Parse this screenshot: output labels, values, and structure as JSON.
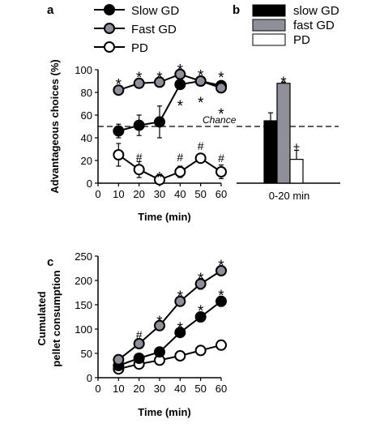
{
  "panel_labels": {
    "a": "a",
    "b": "b",
    "c": "c"
  },
  "chart_a_legend": [
    "Slow GD",
    "Fast GD",
    "PD"
  ],
  "chart_b_legend": [
    "slow GD",
    "fast GD",
    "PD"
  ],
  "chance_label": "Chance",
  "colors": {
    "slow": "#000000",
    "fast": "#8f8f9a",
    "pd": "#ffffff",
    "line": "#000000"
  },
  "chart_data": [
    {
      "id": "a",
      "type": "line",
      "xlabel": "Time (min)",
      "ylabel": "Advantageous choices (%)",
      "x": [
        10,
        20,
        30,
        40,
        50,
        60
      ],
      "xlim": [
        0,
        60
      ],
      "ylim": [
        0,
        100
      ],
      "xticks": [
        0,
        10,
        20,
        30,
        40,
        50,
        60
      ],
      "yticks": [
        0,
        20,
        40,
        60,
        80,
        100
      ],
      "chance_level": 50,
      "series": [
        {
          "name": "Slow GD",
          "values": [
            46,
            51,
            54,
            87,
            90,
            86
          ],
          "errors": [
            6,
            9,
            14,
            2,
            2,
            3
          ]
        },
        {
          "name": "Fast GD",
          "values": [
            82,
            88,
            89,
            96,
            90,
            84
          ],
          "errors": [
            2,
            2,
            2,
            1,
            2,
            3
          ]
        },
        {
          "name": "PD",
          "values": [
            25,
            12,
            3,
            10,
            22,
            10
          ],
          "errors": [
            10,
            7,
            4,
            5,
            3,
            6
          ]
        }
      ],
      "annotations": [
        {
          "x": 10,
          "y": 91,
          "text": "*"
        },
        {
          "x": 20,
          "y": 97,
          "text": "*"
        },
        {
          "x": 30,
          "y": 97,
          "text": "*"
        },
        {
          "x": 40,
          "y": 104,
          "text": "*"
        },
        {
          "x": 50,
          "y": 99,
          "text": "*"
        },
        {
          "x": 60,
          "y": 97,
          "text": "*"
        },
        {
          "x": 40,
          "y": 72,
          "text": "*"
        },
        {
          "x": 50,
          "y": 75,
          "text": "*"
        },
        {
          "x": 60,
          "y": 65,
          "text": "*"
        },
        {
          "x": 20,
          "y": 23,
          "text": "#"
        },
        {
          "x": 30,
          "y": 9,
          "text": "*"
        },
        {
          "x": 40,
          "y": 23,
          "text": "#"
        },
        {
          "x": 50,
          "y": 33,
          "text": "#"
        },
        {
          "x": 60,
          "y": 22,
          "text": "#"
        }
      ]
    },
    {
      "id": "b",
      "type": "bar",
      "categories": [
        "0-20 min"
      ],
      "ylim": [
        0,
        100
      ],
      "chance_level": 50,
      "series": [
        {
          "name": "slow GD",
          "values": [
            55
          ],
          "errors": [
            7
          ]
        },
        {
          "name": "fast GD",
          "values": [
            88
          ],
          "errors": [
            1
          ]
        },
        {
          "name": "PD",
          "values": [
            21
          ],
          "errors": [
            8
          ]
        }
      ],
      "annotations": [
        {
          "series": "fast GD",
          "y": 93,
          "text": "*"
        },
        {
          "series": "PD",
          "y": 33,
          "text": "+"
        }
      ]
    },
    {
      "id": "c",
      "type": "line",
      "xlabel": "Time (min)",
      "ylabel": [
        "Cumulated",
        "pellet consumption"
      ],
      "x": [
        10,
        20,
        30,
        40,
        50,
        60
      ],
      "xlim": [
        0,
        60
      ],
      "ylim": [
        0,
        250
      ],
      "xticks": [
        0,
        10,
        20,
        30,
        40,
        50,
        60
      ],
      "yticks": [
        0,
        50,
        100,
        150,
        200,
        250
      ],
      "series": [
        {
          "name": "Slow GD",
          "values": [
            25,
            40,
            53,
            93,
            125,
            157
          ],
          "errors": [
            4,
            5,
            6,
            8,
            10,
            10
          ]
        },
        {
          "name": "Fast GD",
          "values": [
            37,
            70,
            107,
            157,
            193,
            220
          ],
          "errors": [
            4,
            5,
            5,
            9,
            11,
            8
          ]
        },
        {
          "name": "PD",
          "values": [
            18,
            28,
            36,
            45,
            56,
            67
          ],
          "errors": [
            2,
            2,
            2,
            3,
            3,
            3
          ]
        }
      ],
      "annotations": [
        {
          "x": 20,
          "y": 88,
          "text": "#"
        },
        {
          "x": 30,
          "y": 125,
          "text": "*"
        },
        {
          "x": 40,
          "y": 177,
          "text": "*"
        },
        {
          "x": 50,
          "y": 213,
          "text": "*"
        },
        {
          "x": 60,
          "y": 240,
          "text": "*"
        },
        {
          "x": 40,
          "y": 112,
          "text": "*"
        },
        {
          "x": 50,
          "y": 147,
          "text": "*"
        },
        {
          "x": 60,
          "y": 178,
          "text": "*"
        }
      ]
    }
  ]
}
